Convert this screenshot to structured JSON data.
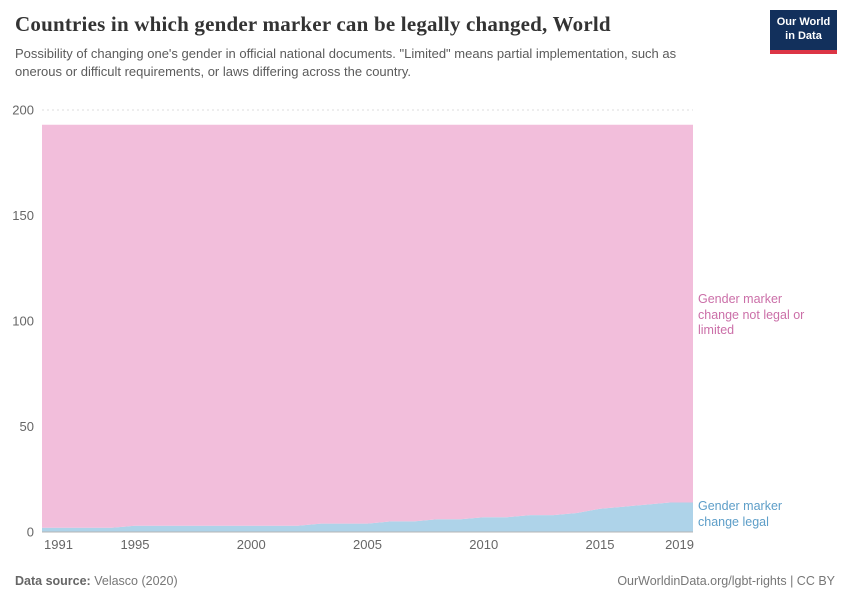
{
  "header": {
    "title": "Countries in which gender marker can be legally changed, World",
    "subtitle": "Possibility of changing one's gender in official national documents. \"Limited\" means partial implementation, such as onerous or difficult requirements, or laws differing across the country.",
    "logo": {
      "line1": "Our World",
      "line2": "in Data"
    }
  },
  "chart_data": {
    "type": "area",
    "stacked": true,
    "title": "Countries in which gender marker can be legally changed, World",
    "x": [
      1991,
      1992,
      1993,
      1994,
      1995,
      1996,
      1997,
      1998,
      1999,
      2000,
      2001,
      2002,
      2003,
      2004,
      2005,
      2006,
      2007,
      2008,
      2009,
      2010,
      2011,
      2012,
      2013,
      2014,
      2015,
      2016,
      2017,
      2018,
      2019
    ],
    "series": [
      {
        "name": "Gender marker change legal",
        "color": "#aed3e9",
        "label_color": "#5d9ec8",
        "values": [
          2,
          2,
          2,
          2,
          3,
          3,
          3,
          3,
          3,
          3,
          3,
          3,
          4,
          4,
          4,
          5,
          5,
          6,
          6,
          7,
          7,
          8,
          8,
          9,
          11,
          12,
          13,
          14,
          14
        ]
      },
      {
        "name": "Gender marker change not legal or limited",
        "color": "#f2bedb",
        "label_color": "#cb6fa8",
        "values": [
          191,
          191,
          191,
          191,
          190,
          190,
          190,
          190,
          190,
          190,
          190,
          190,
          189,
          189,
          189,
          188,
          188,
          187,
          187,
          186,
          186,
          185,
          185,
          184,
          182,
          181,
          180,
          179,
          179
        ]
      }
    ],
    "ylim": [
      0,
      200
    ],
    "yticks": [
      0,
      50,
      100,
      150,
      200
    ],
    "xticks": [
      1991,
      1995,
      2000,
      2005,
      2010,
      2015,
      2019
    ],
    "grid": "dashed-horizontal",
    "legend_position": "right-inline-labels"
  },
  "labels": {
    "not_legal": "Gender marker change not legal or limited",
    "legal": "Gender marker change legal"
  },
  "footer": {
    "source_label": "Data source:",
    "source": "Velasco (2020)",
    "right": "OurWorldinData.org/lgbt-rights | CC BY"
  }
}
